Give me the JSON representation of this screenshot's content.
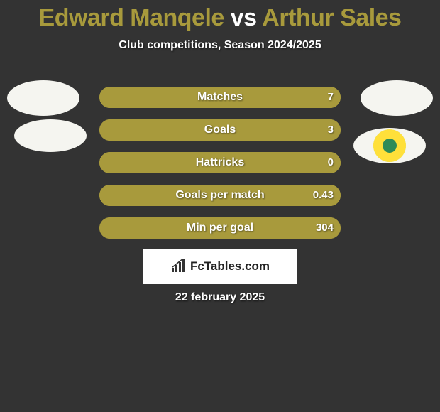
{
  "title": {
    "player1": "Edward Manqele",
    "vs": "vs",
    "player2": "Arthur Sales",
    "player1_color": "#a89a3c",
    "vs_color": "#ffffff",
    "player2_color": "#a89a3c"
  },
  "subtitle": "Club competitions, Season 2024/2025",
  "stats": [
    {
      "label": "Matches",
      "left_value": "",
      "right_value": "7",
      "left_width_pct": 0,
      "right_width_pct": 100,
      "left_color": "#a89a3c",
      "right_color": "#a89a3c"
    },
    {
      "label": "Goals",
      "left_value": "",
      "right_value": "3",
      "left_width_pct": 0,
      "right_width_pct": 100,
      "left_color": "#a89a3c",
      "right_color": "#a89a3c"
    },
    {
      "label": "Hattricks",
      "left_value": "",
      "right_value": "0",
      "left_width_pct": 0,
      "right_width_pct": 100,
      "left_color": "#a89a3c",
      "right_color": "#a89a3c"
    },
    {
      "label": "Goals per match",
      "left_value": "",
      "right_value": "0.43",
      "left_width_pct": 0,
      "right_width_pct": 100,
      "left_color": "#a89a3c",
      "right_color": "#a89a3c"
    },
    {
      "label": "Min per goal",
      "left_value": "",
      "right_value": "304",
      "left_width_pct": 0,
      "right_width_pct": 100,
      "left_color": "#a89a3c",
      "right_color": "#a89a3c"
    }
  ],
  "watermark": "FcTables.com",
  "date": "22 february 2025",
  "background_color": "#333333",
  "bar_background": "#a89a3c",
  "club_badge_right": {
    "outer_ring": "#b6d84a",
    "inner": "#ffe03a",
    "center": "#2e8b57"
  }
}
